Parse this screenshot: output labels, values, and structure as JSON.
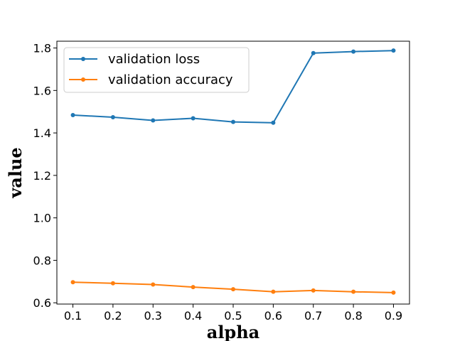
{
  "chart_data": {
    "type": "line",
    "title": "",
    "xlabel": "alpha",
    "ylabel": "value",
    "x": [
      0.1,
      0.2,
      0.3,
      0.4,
      0.5,
      0.6,
      0.7,
      0.8,
      0.9
    ],
    "x_tick_labels": [
      "0.1",
      "0.2",
      "0.3",
      "0.4",
      "0.5",
      "0.6",
      "0.7",
      "0.8",
      "0.9"
    ],
    "y_ticks": [
      0.6,
      0.8,
      1.0,
      1.2,
      1.4,
      1.6,
      1.8
    ],
    "y_tick_labels": [
      "0.6",
      "0.8",
      "1.0",
      "1.2",
      "1.4",
      "1.6",
      "1.8"
    ],
    "xlim": [
      0.06,
      0.94
    ],
    "ylim": [
      0.594,
      1.832
    ],
    "grid": false,
    "legend_position": "upper-left",
    "series": [
      {
        "name": "validation loss",
        "color": "#1f77b4",
        "marker": "dot",
        "values": [
          1.484,
          1.474,
          1.459,
          1.469,
          1.452,
          1.448,
          1.776,
          1.783,
          1.788
        ]
      },
      {
        "name": "validation accuracy",
        "color": "#ff7f0e",
        "marker": "dot",
        "values": [
          0.697,
          0.692,
          0.686,
          0.674,
          0.664,
          0.652,
          0.658,
          0.652,
          0.648
        ]
      }
    ]
  }
}
